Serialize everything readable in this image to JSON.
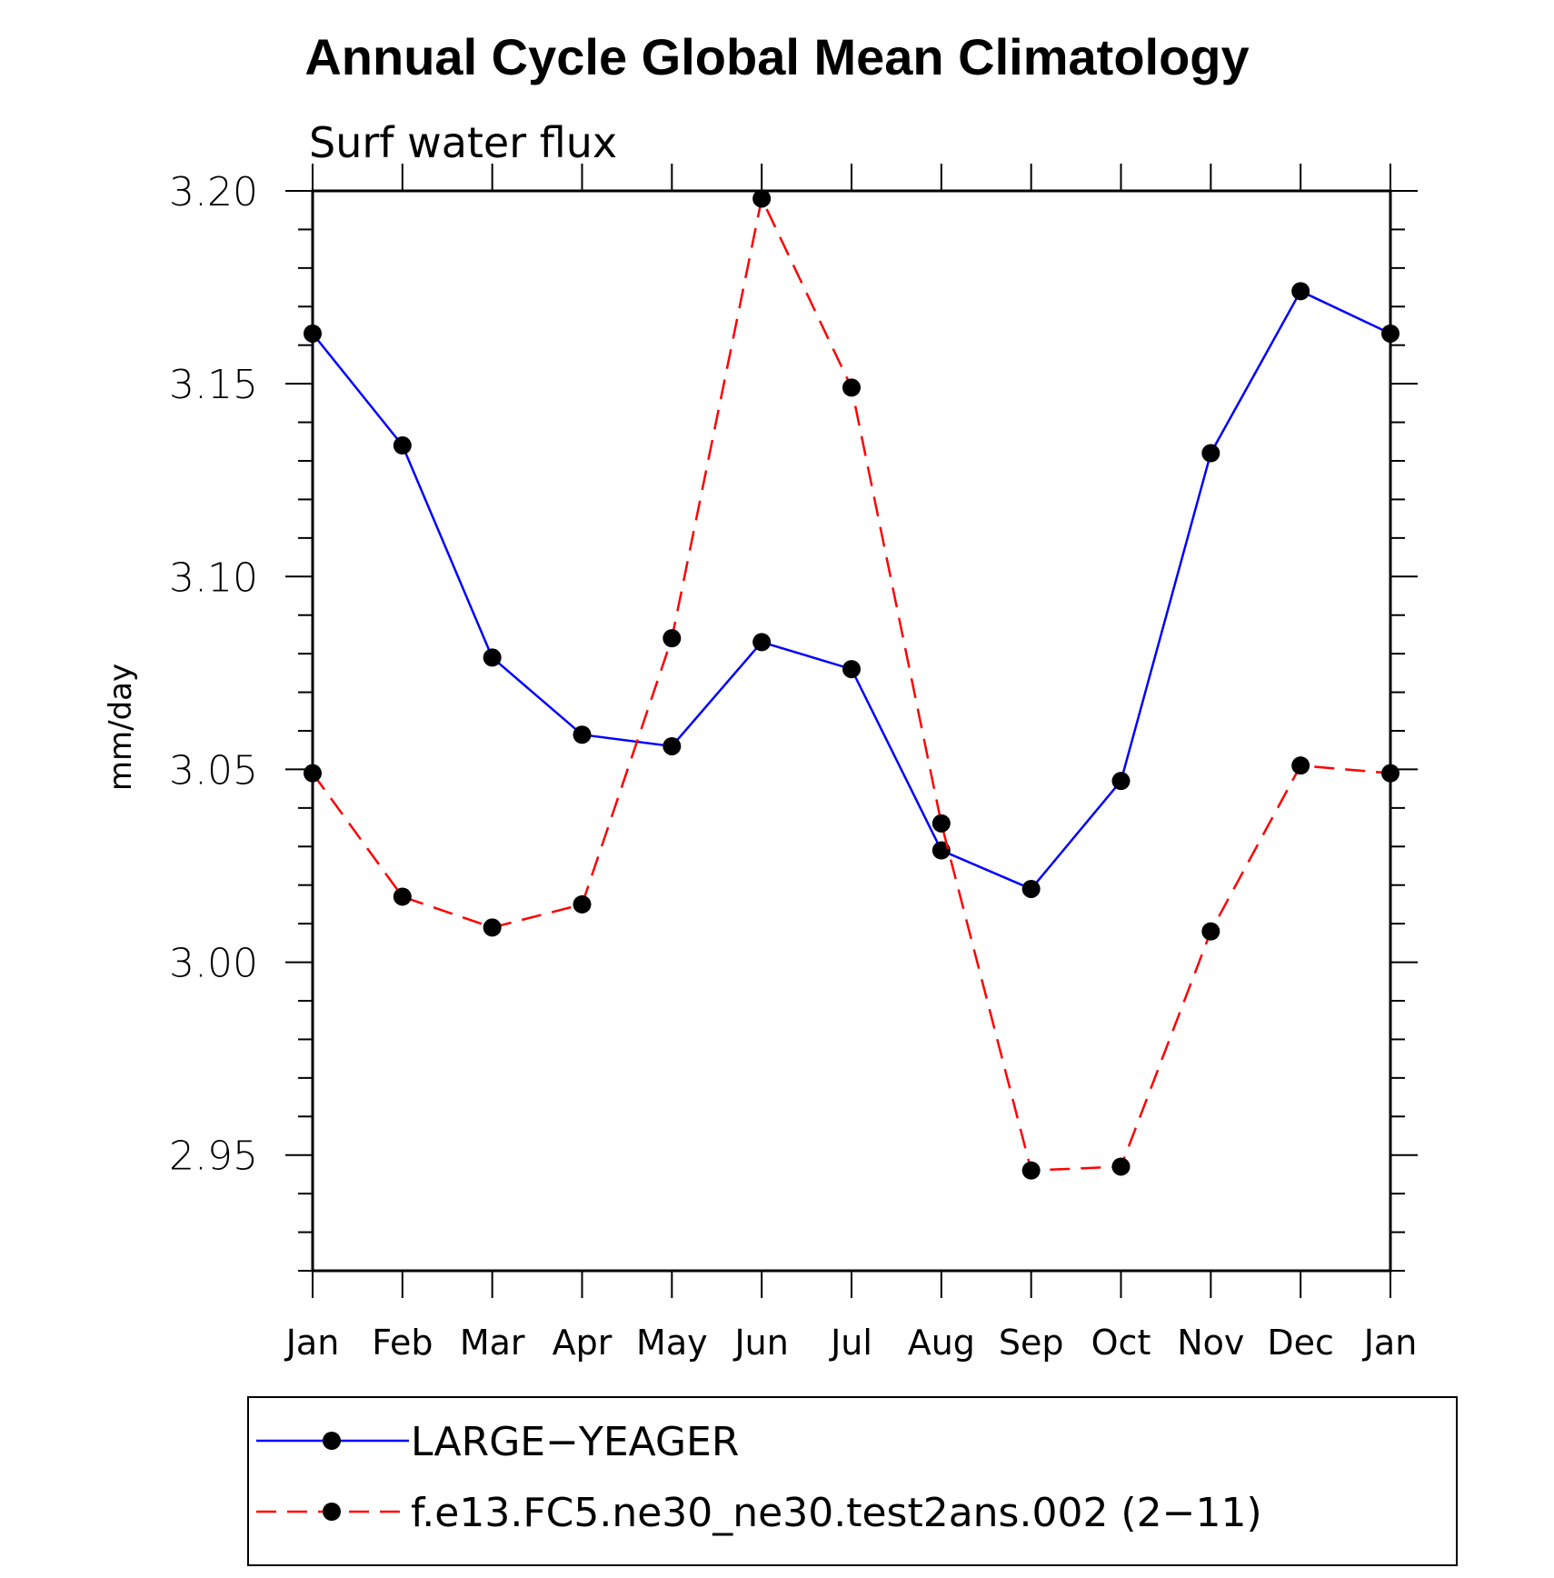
{
  "chart_data": {
    "type": "line",
    "title": "Annual Cycle Global Mean Climatology",
    "subtitle": "Surf water flux",
    "xlabel": "",
    "ylabel": "mm/day",
    "categories": [
      "Jan",
      "Feb",
      "Mar",
      "Apr",
      "May",
      "Jun",
      "Jul",
      "Aug",
      "Sep",
      "Oct",
      "Nov",
      "Dec",
      "Jan"
    ],
    "ylim": [
      2.92,
      3.2
    ],
    "yticks": [
      "3.20",
      "3.15",
      "3.10",
      "3.05",
      "3.00",
      "2.95"
    ],
    "grid": false,
    "legend_position": "bottom",
    "series": [
      {
        "name": "LARGE−YEAGER",
        "color": "#0000ff",
        "style": "solid",
        "values": [
          3.163,
          3.134,
          3.079,
          3.059,
          3.056,
          3.083,
          3.076,
          3.029,
          3.019,
          3.047,
          3.132,
          3.174,
          3.163
        ]
      },
      {
        "name": "f.e13.FC5.ne30_ne30.test2ans.002 (2−11)",
        "color": "#ff0000",
        "style": "dashed",
        "values": [
          3.049,
          3.017,
          3.009,
          3.015,
          3.084,
          3.198,
          3.149,
          3.036,
          2.946,
          2.947,
          3.008,
          3.051,
          3.049
        ]
      }
    ]
  }
}
